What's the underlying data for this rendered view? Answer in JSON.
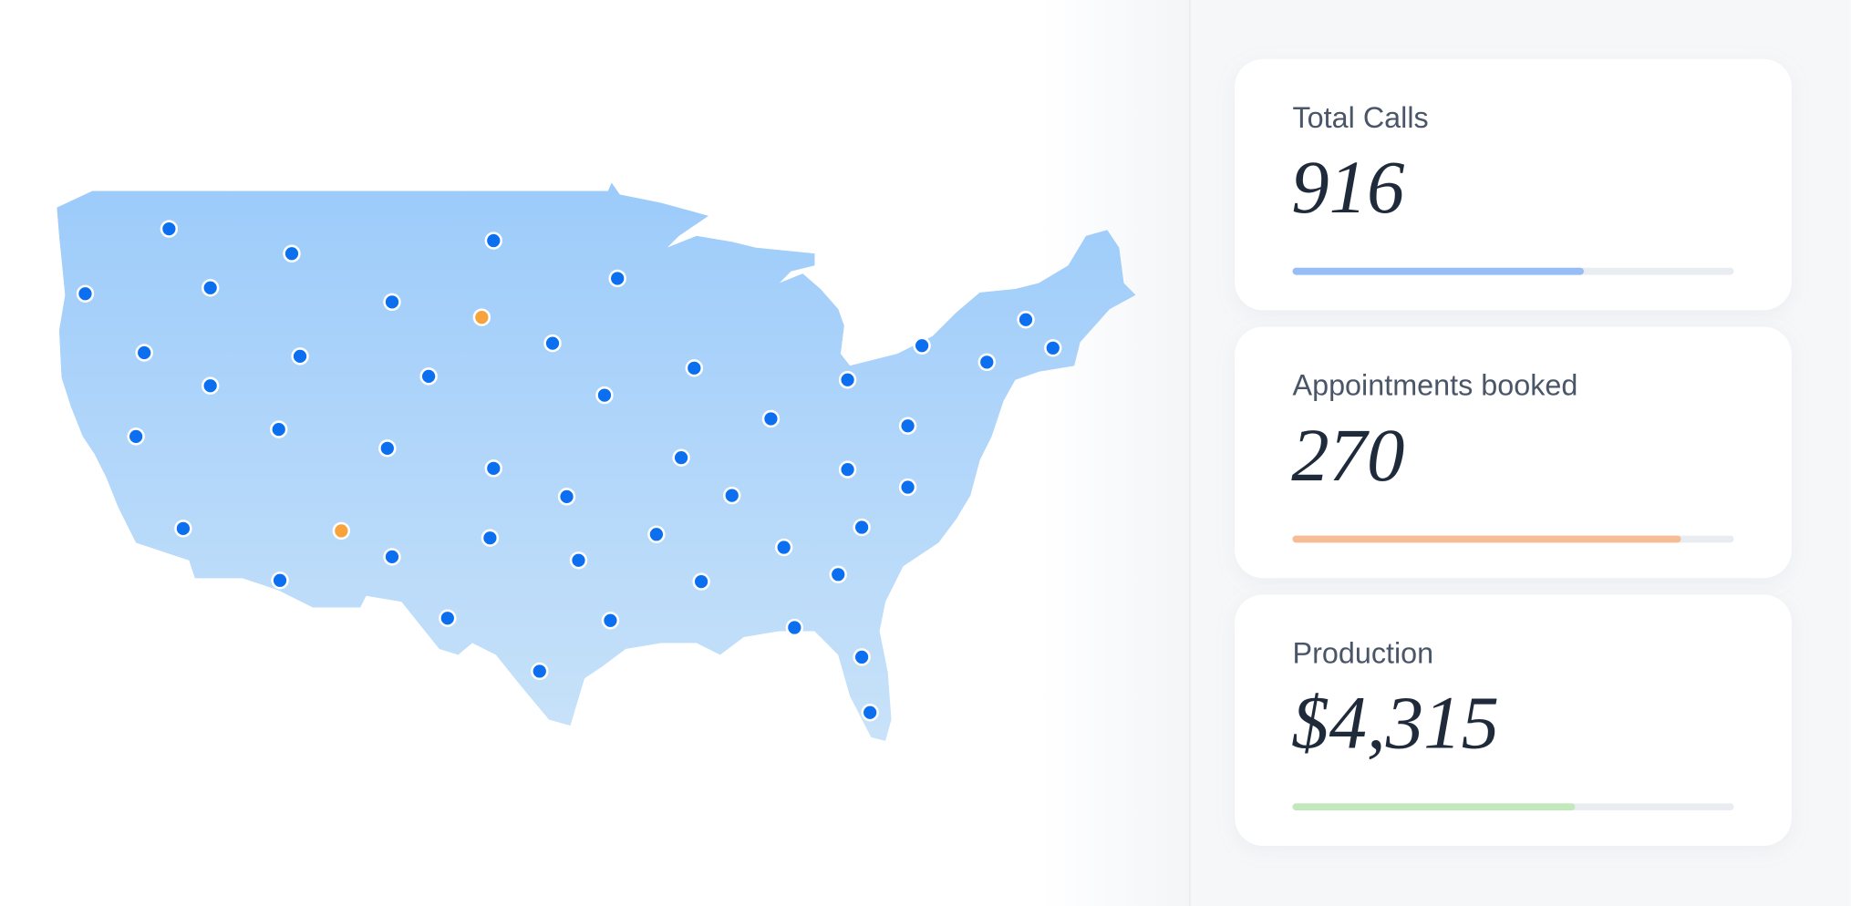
{
  "cards": [
    {
      "title": "Total Calls",
      "value": 916,
      "progress": 66,
      "color": "#96bdf6"
    },
    {
      "title": "Appointments booked",
      "value": 270,
      "progress": 88,
      "color": "#f6bc95"
    },
    {
      "title": "Production",
      "value": "$4,315",
      "progress": 64,
      "color": "#c2e8bc"
    }
  ]
}
